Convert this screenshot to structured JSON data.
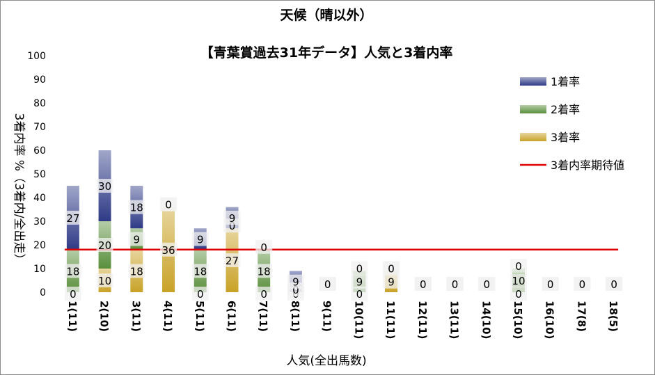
{
  "chart_data": {
    "type": "bar",
    "stacked": true,
    "title": "天候（晴以外）",
    "subtitle": "【青葉賞過去31年データ】人気と3着内率",
    "xlabel": "人気(全出馬数)",
    "ylabel": "3着内率 %（3着内/全出走）",
    "ylim": [
      0,
      100
    ],
    "yticks": [
      0,
      10,
      20,
      30,
      40,
      50,
      60,
      70,
      80,
      90,
      100
    ],
    "grid": false,
    "legend_position": "right",
    "categories": [
      "1(11)",
      "2(10)",
      "3(11)",
      "4(11)",
      "5(11)",
      "6(11)",
      "7(11)",
      "8(11)",
      "9(11)",
      "10(11)",
      "11(11)",
      "12(11)",
      "13(11)",
      "14(10)",
      "15(10)",
      "16(10)",
      "17(8)",
      "18(5)"
    ],
    "series": [
      {
        "name": "3着率",
        "color": "#c9a227",
        "values": [
          0,
          10,
          18,
          36,
          0,
          27,
          0,
          0,
          0,
          0,
          9,
          0,
          0,
          0,
          0,
          0,
          0,
          0
        ]
      },
      {
        "name": "2着率",
        "color": "#5a8f3c",
        "values": [
          18,
          20,
          9,
          0,
          18,
          0,
          18,
          0,
          0,
          9,
          0,
          0,
          0,
          0,
          10,
          0,
          0,
          0
        ]
      },
      {
        "name": "1着率",
        "color": "#2e3a86",
        "values": [
          27,
          30,
          18,
          0,
          9,
          9,
          0,
          9,
          0,
          0,
          0,
          0,
          0,
          0,
          0,
          0,
          0,
          0
        ]
      }
    ],
    "reference_line": {
      "name": "3着内率期待値",
      "color": "#e00000",
      "value": 18
    }
  }
}
